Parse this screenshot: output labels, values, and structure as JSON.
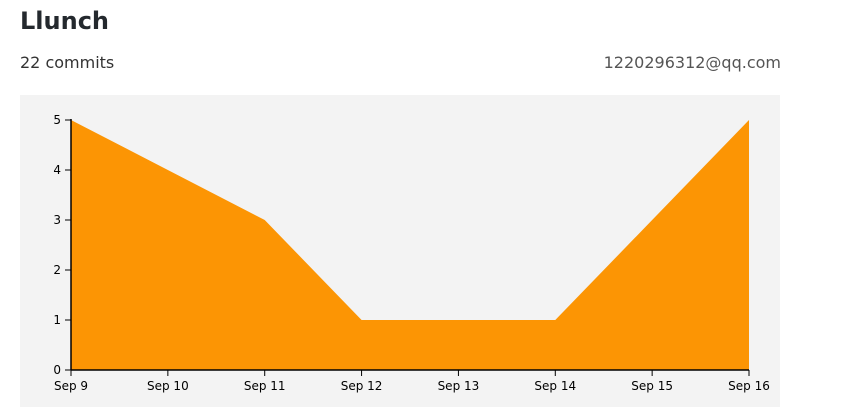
{
  "header": {
    "title": "Llunch",
    "commits": "22 commits",
    "email": "1220296312@qq.com"
  },
  "colors": {
    "area": "#fc9504",
    "background": "#f3f3f3",
    "axis": "#000000"
  },
  "chart_data": {
    "type": "area",
    "categories": [
      "Sep 9",
      "Sep 10",
      "Sep 11",
      "Sep 12",
      "Sep 13",
      "Sep 14",
      "Sep 15",
      "Sep 16"
    ],
    "values": [
      5,
      4,
      3,
      1,
      1,
      1,
      3,
      5
    ],
    "yticks": [
      "0",
      "1",
      "2",
      "3",
      "4",
      "5"
    ],
    "ylim": [
      0,
      5
    ],
    "grid": false,
    "legend": "none"
  }
}
